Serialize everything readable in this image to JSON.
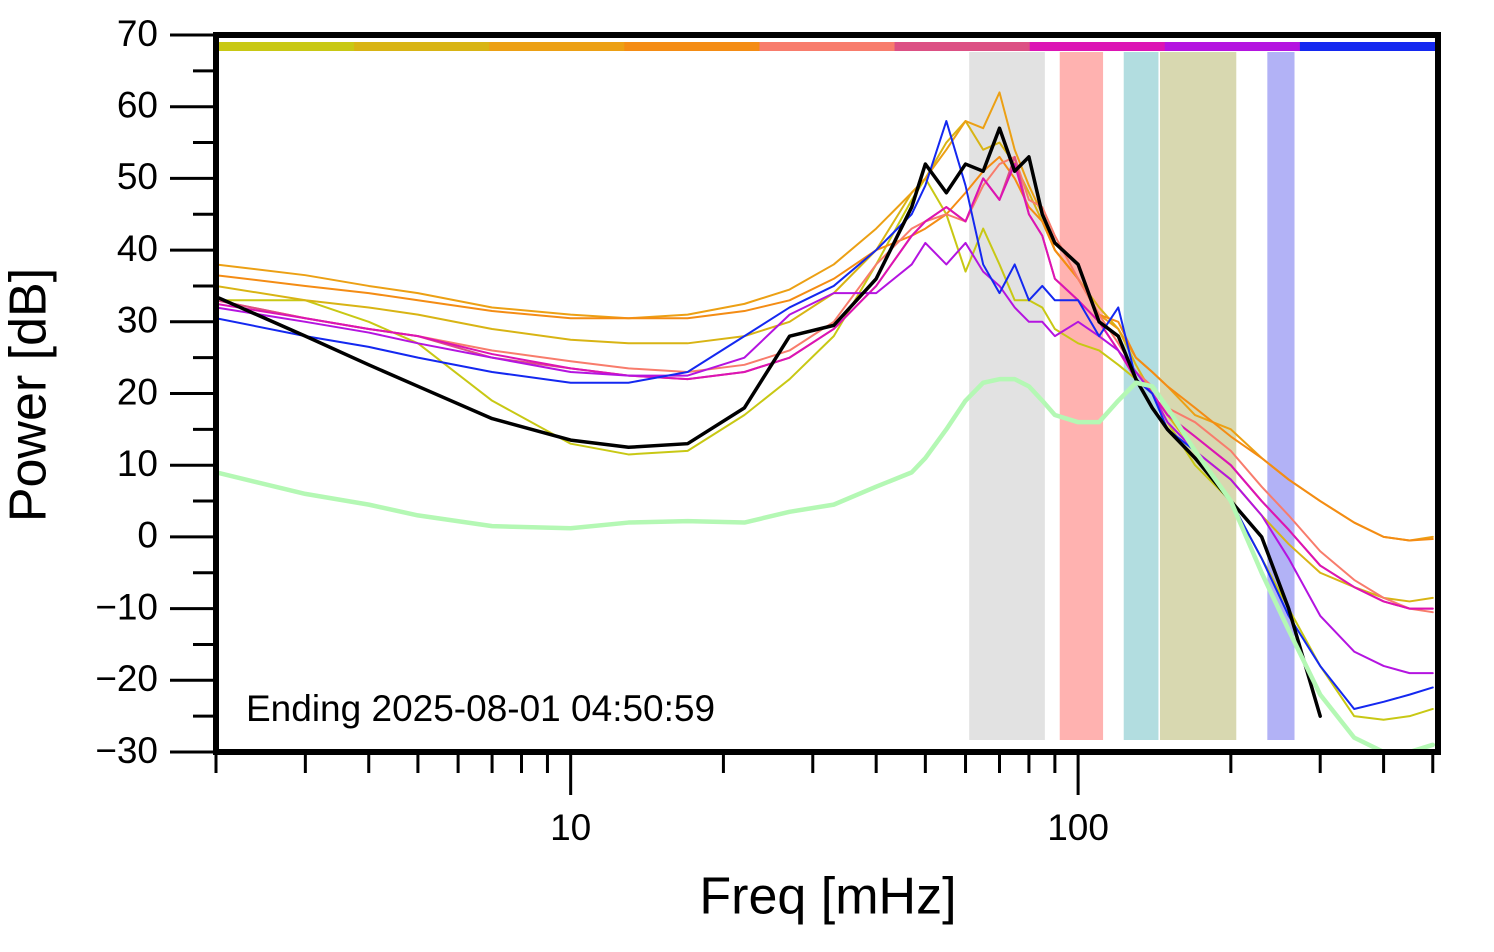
{
  "chart_data": {
    "type": "line",
    "x_label": "Freq [mHz]",
    "y_label": "Power [dB]",
    "annotation": "Ending 2025-08-01 04:50:59",
    "xscale": "log",
    "xlim": [
      2,
      512
    ],
    "ylim": [
      -30,
      70
    ],
    "xticks": [
      10,
      100
    ],
    "xminorticks": [
      2,
      3,
      4,
      5,
      6,
      7,
      8,
      9,
      20,
      30,
      40,
      50,
      60,
      70,
      80,
      90,
      200,
      300,
      400,
      500
    ],
    "yticks": [
      {
        "value": -30,
        "label": "−30"
      },
      {
        "value": -20,
        "label": "−20"
      },
      {
        "value": -10,
        "label": "−10"
      },
      0,
      10,
      20,
      30,
      40,
      50,
      60,
      70
    ],
    "yminorticks": [
      -25,
      -15,
      -5,
      5,
      15,
      25,
      35,
      45,
      55,
      65
    ],
    "color_bar": [
      "#c8c814",
      "#d8b414",
      "#eca014",
      "#f48c14",
      "#f87c6c",
      "#dc5084",
      "#dc14b4",
      "#b414e0",
      "#1428f0"
    ],
    "bands": [
      {
        "x": [
          61,
          86
        ],
        "color": "#e2e2e2"
      },
      {
        "x": [
          92,
          112
        ],
        "color": "#ffb2b0"
      },
      {
        "x": [
          123,
          144
        ],
        "color": "#b2dde0"
      },
      {
        "x": [
          145,
          205
        ],
        "color": "#d8d8b0"
      },
      {
        "x": [
          236,
          267
        ],
        "color": "#b2b2f6"
      }
    ],
    "x": [
      2,
      3,
      4,
      5,
      7,
      10,
      13,
      17,
      22,
      27,
      33,
      40,
      47,
      50,
      55,
      60,
      65,
      70,
      75,
      80,
      85,
      90,
      100,
      110,
      120,
      130,
      140,
      150,
      170,
      200,
      230,
      260,
      300,
      350,
      400,
      450,
      500
    ],
    "series": [
      {
        "color": "#c8c814",
        "width": 2,
        "values": [
          33,
          33,
          30,
          27,
          19,
          13,
          11.5,
          12,
          17,
          22,
          28,
          38,
          47,
          50,
          45,
          37,
          43,
          38,
          33,
          33,
          32,
          29,
          27,
          26,
          24,
          22,
          20,
          16,
          10,
          5,
          -3,
          -10,
          -18,
          -25,
          -25.5,
          -25,
          -24
        ]
      },
      {
        "color": "#d8b414",
        "width": 2,
        "values": [
          35,
          33,
          32,
          31,
          29,
          27.5,
          27,
          27,
          28,
          30,
          34,
          40,
          48,
          50,
          55,
          58,
          54,
          55,
          52,
          48,
          44,
          40,
          36,
          32,
          29,
          24,
          20,
          17,
          12,
          8,
          3,
          -1,
          -5,
          -7,
          -8.5,
          -9,
          -8.5
        ]
      },
      {
        "color": "#eca014",
        "width": 2,
        "values": [
          38,
          36.5,
          35,
          34,
          32,
          31,
          30.5,
          31,
          32.5,
          34.5,
          38,
          43,
          48,
          50,
          54,
          58,
          57,
          62,
          54,
          49,
          45,
          40,
          36,
          31,
          29,
          25,
          23,
          21,
          17,
          15,
          11,
          8,
          5,
          2,
          0,
          -0.5,
          0
        ]
      },
      {
        "color": "#f48c14",
        "width": 2,
        "values": [
          36.5,
          35,
          34,
          33,
          31.5,
          30.5,
          30.5,
          30.5,
          31.5,
          33,
          36,
          40,
          42,
          43,
          45,
          48,
          51,
          53,
          50,
          46,
          44,
          40,
          36,
          31,
          30,
          25,
          23,
          21,
          18,
          14,
          11,
          8,
          5,
          2,
          0,
          -0.5,
          -0.3
        ]
      },
      {
        "color": "#f87c6c",
        "width": 2,
        "values": [
          33,
          30.5,
          29,
          28,
          26,
          24.5,
          23.5,
          23,
          24,
          26,
          30,
          38,
          43,
          44,
          45,
          44,
          49,
          52,
          53,
          47,
          46,
          42,
          36,
          31,
          27,
          23,
          21,
          18,
          16,
          12,
          7,
          3,
          -2,
          -6,
          -8.5,
          -10,
          -10.5
        ]
      },
      {
        "color": "#dc5084",
        "width": 2,
        "values": [
          33,
          30.5,
          29,
          28,
          25,
          23.5,
          22.5,
          22,
          23,
          25,
          29,
          35,
          42,
          44,
          46,
          44,
          50,
          47,
          53,
          45,
          42,
          36,
          33,
          30,
          26,
          22,
          20,
          17,
          14,
          10,
          5,
          1,
          -4,
          -7,
          -9,
          -10,
          -10
        ]
      },
      {
        "color": "#dc14b4",
        "width": 2,
        "values": [
          32.5,
          30.5,
          29,
          28,
          25.5,
          23.5,
          22.5,
          22,
          23,
          25,
          29,
          35,
          42,
          44,
          46,
          44,
          50,
          47,
          52,
          45,
          42,
          36,
          33,
          30,
          26,
          22,
          20,
          17,
          14,
          10,
          5,
          1,
          -4,
          -7,
          -9,
          -10,
          -10
        ]
      },
      {
        "color": "#b414e0",
        "width": 2,
        "values": [
          32,
          30,
          28.5,
          27,
          25,
          23,
          22.5,
          22.5,
          25,
          31,
          34,
          34,
          38,
          41,
          38,
          41,
          37,
          35,
          32,
          30,
          30,
          28,
          30,
          28,
          26,
          23,
          20,
          16,
          12,
          8,
          3,
          -3,
          -11,
          -16,
          -18,
          -19,
          -19
        ]
      },
      {
        "color": "#1428f0",
        "width": 2,
        "values": [
          30.5,
          28,
          26.5,
          25,
          23,
          21.5,
          21.5,
          23,
          28,
          32,
          35,
          40,
          45,
          49,
          58,
          49,
          38,
          34,
          38,
          33,
          35,
          33,
          33,
          28,
          32,
          22,
          20,
          15,
          12,
          5,
          -3,
          -11,
          -18,
          -24,
          -23,
          -22,
          -21
        ]
      },
      {
        "color": "#000000",
        "width": 3.5,
        "values": [
          33.5,
          28,
          24,
          21,
          16.5,
          13.5,
          12.5,
          13,
          18,
          28,
          29.5,
          36,
          46,
          52,
          48,
          52,
          51,
          57,
          51,
          53,
          45,
          41,
          38,
          30,
          28,
          22,
          18,
          15,
          11,
          5,
          0,
          -10,
          -25,
          null,
          null,
          null,
          null
        ]
      },
      {
        "color": "#b4f8b4",
        "width": 4.5,
        "values": [
          9,
          6,
          4.5,
          3,
          1.5,
          1.2,
          2,
          2.2,
          2,
          3.5,
          4.5,
          7,
          9,
          11,
          15,
          19,
          21.5,
          22,
          22,
          21,
          19,
          17,
          16,
          16,
          19,
          21.5,
          21,
          18,
          12,
          5,
          -5,
          -13,
          -22,
          -28,
          -30,
          -30,
          -29
        ]
      }
    ]
  }
}
